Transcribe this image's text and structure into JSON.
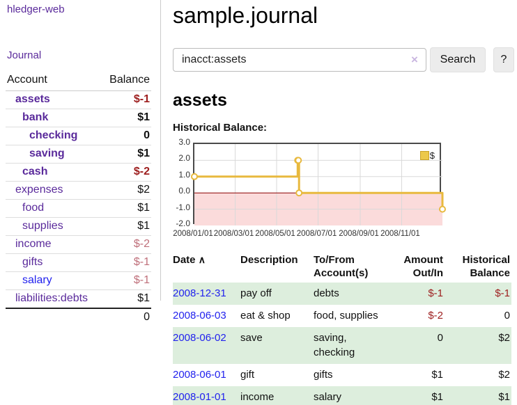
{
  "colors": {
    "purple": "#5a2a9b",
    "blue": "#2222ee",
    "neg_strong": "#9d1e1e",
    "neg_soft": "#bf6f7a",
    "row_green": "#ddeedd",
    "line_gold": "#e8b93e",
    "negative_fill": "#fbdbdb",
    "zero_line": "#8b0000",
    "clear_icon": "#c9b6e0"
  },
  "sidebar": {
    "brand": "hledger-web",
    "journal_link": "Journal",
    "columns": {
      "account": "Account",
      "balance": "Balance"
    },
    "accounts": [
      {
        "name": "assets",
        "level": 1,
        "bold": true,
        "link_color": "purple",
        "balance": "$-1",
        "balance_style": "neg-strong"
      },
      {
        "name": "bank",
        "level": 2,
        "bold": true,
        "link_color": "purple",
        "balance": "$1",
        "balance_style": "bold"
      },
      {
        "name": "checking",
        "level": 3,
        "bold": true,
        "link_color": "purple",
        "balance": "0",
        "balance_style": "bold"
      },
      {
        "name": "saving",
        "level": 3,
        "bold": true,
        "link_color": "purple",
        "balance": "$1",
        "balance_style": "bold"
      },
      {
        "name": "cash",
        "level": 2,
        "bold": true,
        "link_color": "purple",
        "balance": "$-2",
        "balance_style": "neg-strong"
      },
      {
        "name": "expenses",
        "level": 1,
        "bold": false,
        "link_color": "purple",
        "balance": "$2",
        "balance_style": "plain"
      },
      {
        "name": "food",
        "level": 2,
        "bold": false,
        "link_color": "purple",
        "balance": "$1",
        "balance_style": "plain"
      },
      {
        "name": "supplies",
        "level": 2,
        "bold": false,
        "link_color": "purple",
        "balance": "$1",
        "balance_style": "plain"
      },
      {
        "name": "income",
        "level": 1,
        "bold": false,
        "link_color": "purple",
        "balance": "$-2",
        "balance_style": "neg-soft"
      },
      {
        "name": "gifts",
        "level": 2,
        "bold": false,
        "link_color": "purple",
        "balance": "$-1",
        "balance_style": "neg-soft"
      },
      {
        "name": "salary",
        "level": 2,
        "bold": false,
        "link_color": "blue",
        "balance": "$-1",
        "balance_style": "neg-soft"
      },
      {
        "name": "liabilities:debts",
        "level": 1,
        "bold": false,
        "link_color": "purple",
        "balance": "$1",
        "balance_style": "plain"
      }
    ],
    "total": "0"
  },
  "main": {
    "title": "sample.journal",
    "account_heading": "assets"
  },
  "search": {
    "value": "inacct:assets",
    "clear_icon": "×",
    "search_button": "Search",
    "help_button": "?"
  },
  "chart_data": {
    "type": "line",
    "title": "Historical Balance:",
    "step": true,
    "ylim": [
      -2,
      3
    ],
    "y_ticks": [
      "3.0",
      "2.0",
      "1.0",
      "0.0",
      "-1.0",
      "-2.0"
    ],
    "x_ticks": [
      "2008/01/01",
      "2008/03/01",
      "2008/05/01",
      "2008/07/01",
      "2008/09/01",
      "2008/11/01"
    ],
    "x_tick_days": [
      0,
      60,
      121,
      182,
      244,
      305
    ],
    "x_range_days": 365,
    "grid": true,
    "legend_position": "top-right",
    "series": [
      {
        "name": "$",
        "color": "#e8b93e",
        "points": [
          {
            "date": "2008-01-01",
            "day": 0,
            "value": 1
          },
          {
            "date": "2008-06-01",
            "day": 152,
            "value": 2
          },
          {
            "date": "2008-06-02",
            "day": 153,
            "value": 2
          },
          {
            "date": "2008-06-03",
            "day": 154,
            "value": 0
          },
          {
            "date": "2008-12-31",
            "day": 365,
            "value": -1
          }
        ]
      }
    ]
  },
  "register": {
    "columns": {
      "date": "Date",
      "sort_icon": "∧",
      "description": "Description",
      "accounts": "To/From Account(s)",
      "amount": "Amount Out/In",
      "balance": "Historical Balance"
    },
    "rows": [
      {
        "date": "2008-12-31",
        "description": "pay off",
        "accounts": "debts",
        "amount": "$-1",
        "amount_negative": true,
        "balance": "$-1",
        "balance_negative": true
      },
      {
        "date": "2008-06-03",
        "description": "eat & shop",
        "accounts": "food, supplies",
        "amount": "$-2",
        "amount_negative": true,
        "balance": "0",
        "balance_negative": false
      },
      {
        "date": "2008-06-02",
        "description": "save",
        "accounts": "saving, checking",
        "amount": "0",
        "amount_negative": false,
        "balance": "$2",
        "balance_negative": false
      },
      {
        "date": "2008-06-01",
        "description": "gift",
        "accounts": "gifts",
        "amount": "$1",
        "amount_negative": false,
        "balance": "$2",
        "balance_negative": false
      },
      {
        "date": "2008-01-01",
        "description": "income",
        "accounts": "salary",
        "amount": "$1",
        "amount_negative": false,
        "balance": "$1",
        "balance_negative": false
      }
    ]
  }
}
